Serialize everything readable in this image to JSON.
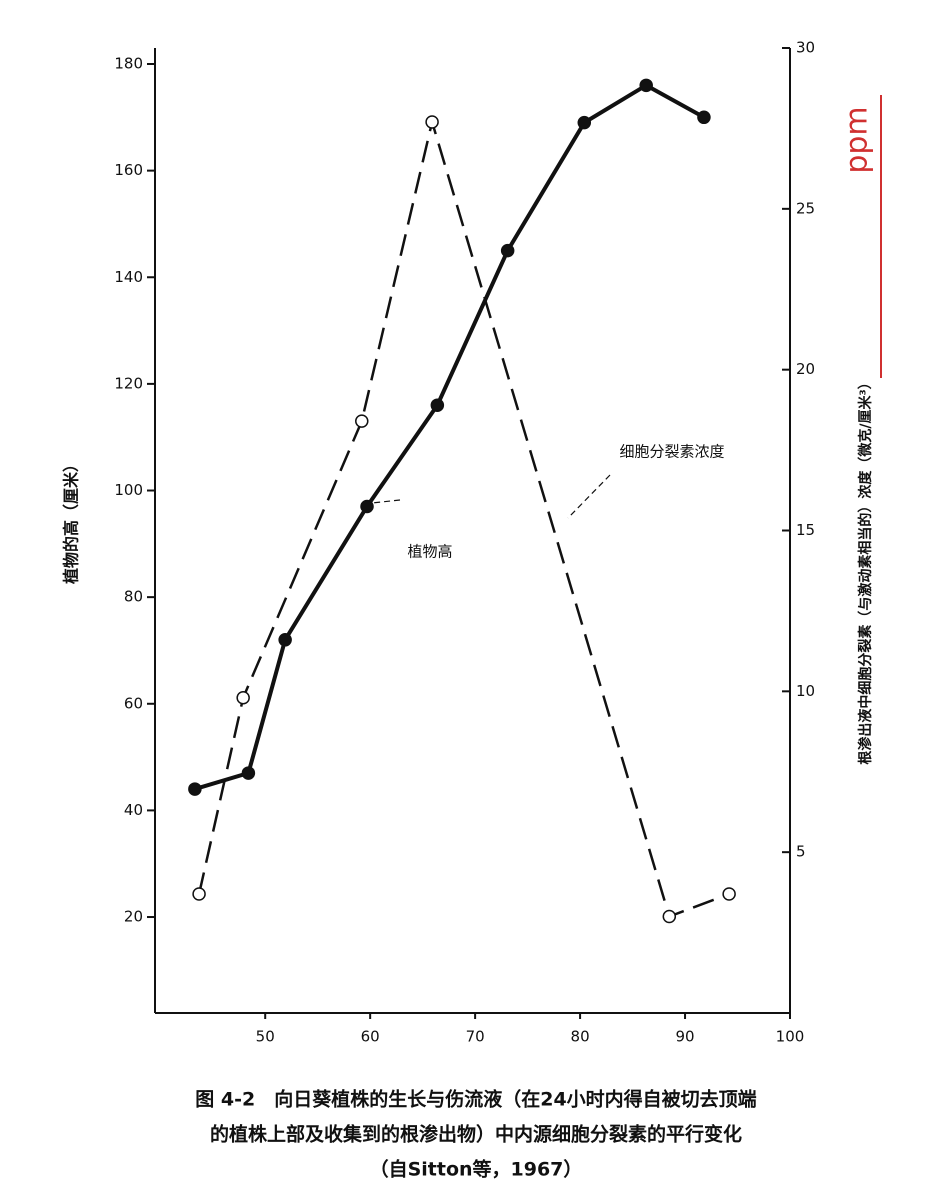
{
  "chart_data": {
    "type": "line",
    "xlim": [
      39.5,
      100
    ],
    "xticks": [
      50,
      60,
      70,
      80,
      90,
      100
    ],
    "ylim": [
      2,
      183
    ],
    "yticks": [
      20,
      40,
      60,
      80,
      100,
      120,
      140,
      160,
      180
    ],
    "y2lim": [
      0,
      30
    ],
    "y2ticks": [
      5,
      10,
      15,
      20,
      25,
      30
    ],
    "ylabel": "植物的高（厘米）",
    "y2label": "根渗出液中细胞分裂素（与激动素相当的）浓度（微克/厘米³）",
    "grid": false,
    "series": [
      {
        "name": "植物高",
        "color": "#111111",
        "line_style": "solid",
        "marker": "filled",
        "x": [
          43.3,
          48.4,
          51.9,
          59.7,
          66.4,
          73.1,
          80.4,
          86.3,
          91.8
        ],
        "values": [
          44,
          47,
          72,
          97,
          116,
          145,
          169,
          176,
          170
        ]
      },
      {
        "name": "细胞分裂素浓度",
        "color": "#111111",
        "line_style": "dashed",
        "marker": "open",
        "axis": "y2",
        "x": [
          43.7,
          47.9,
          59.2,
          65.9,
          88.5,
          94.2
        ],
        "values": [
          3.7,
          9.8,
          18.4,
          27.7,
          3.0,
          3.7
        ]
      }
    ],
    "handwritten_note": "ppm",
    "caption": [
      "图 4-2　向日葵植株的生长与伤流液（在24小时内得自被切去顶端",
      "的植株上部及收集到的根渗出物）中内源细胞分裂素的平行变化",
      "（自Sitton等，1967）"
    ]
  }
}
